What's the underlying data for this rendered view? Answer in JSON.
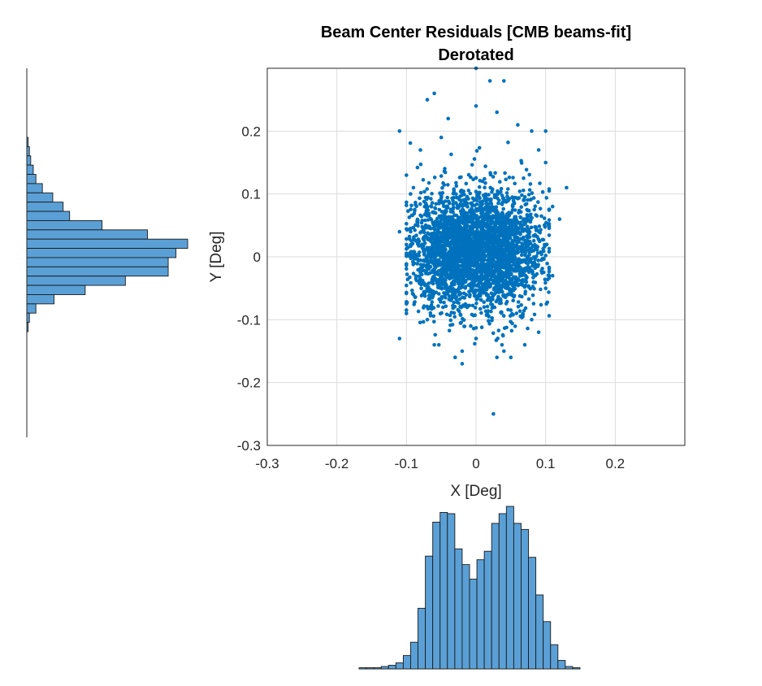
{
  "chart_data": [
    {
      "type": "scatter",
      "title": "Beam Center Residuals [CMB beams-fit]",
      "subtitle": "Derotated",
      "xlabel": "X [Deg]",
      "ylabel": "Y [Deg]",
      "xlim": [
        -0.3,
        0.3
      ],
      "ylim": [
        -0.3,
        0.3
      ],
      "xticks": [
        "-0.3",
        "-0.2",
        "-0.1",
        "0",
        "0.1",
        "0.2"
      ],
      "yticks": [
        "0.2",
        "0.1",
        "0",
        "-0.1",
        "-0.2",
        "-0.3"
      ],
      "grid": true,
      "color": "#0072BD",
      "points": [
        [
          -0.07,
          0.25
        ],
        [
          -0.06,
          0.26
        ],
        [
          0.02,
          0.28
        ],
        [
          0.04,
          0.28
        ],
        [
          -0.04,
          0.22
        ],
        [
          0.08,
          0.2
        ],
        [
          0.1,
          0.2
        ],
        [
          -0.11,
          0.2
        ],
        [
          -0.1,
          0.13
        ],
        [
          0.13,
          0.11
        ],
        [
          0.11,
          0.08
        ],
        [
          -0.11,
          0.04
        ],
        [
          -0.11,
          -0.13
        ],
        [
          -0.1,
          -0.09
        ],
        [
          0.09,
          -0.12
        ],
        [
          0.05,
          -0.16
        ],
        [
          0.04,
          -0.15
        ],
        [
          -0.02,
          -0.17
        ],
        [
          -0.03,
          -0.16
        ],
        [
          0.03,
          -0.16
        ],
        [
          0.0,
          -0.13
        ],
        [
          -0.08,
          0.17
        ],
        [
          0.1,
          0.15
        ],
        [
          0.12,
          0.06
        ],
        [
          0.1,
          -0.05
        ],
        [
          -0.09,
          -0.06
        ],
        [
          -0.05,
          0.19
        ],
        [
          0.06,
          0.21
        ],
        [
          0.0,
          0.24
        ],
        [
          0.03,
          0.23
        ],
        [
          -0.02,
          -0.15
        ],
        [
          0.07,
          -0.14
        ],
        [
          0.025,
          -0.25
        ],
        [
          -0.06,
          -0.14
        ],
        [
          0.0,
          0.3
        ],
        [
          -0.07,
          -0.1
        ],
        [
          0.08,
          -0.1
        ],
        [
          0.09,
          0.17
        ],
        [
          -0.09,
          0.11
        ],
        [
          0.11,
          -0.03
        ]
      ]
    },
    {
      "type": "bar",
      "title": "",
      "orientation": "horizontal",
      "values": [
        1,
        2,
        3,
        5,
        7,
        12,
        20,
        28,
        33,
        58,
        93,
        124,
        115,
        109,
        109,
        76,
        45,
        21,
        7,
        2,
        1
      ]
    },
    {
      "type": "bar",
      "title": "",
      "orientation": "vertical",
      "values": [
        1,
        1,
        1,
        2,
        3,
        5,
        11,
        22,
        50,
        93,
        121,
        129,
        128,
        99,
        86,
        74,
        90,
        97,
        120,
        128,
        134,
        120,
        115,
        92,
        61,
        39,
        20,
        7,
        2,
        1
      ]
    }
  ]
}
